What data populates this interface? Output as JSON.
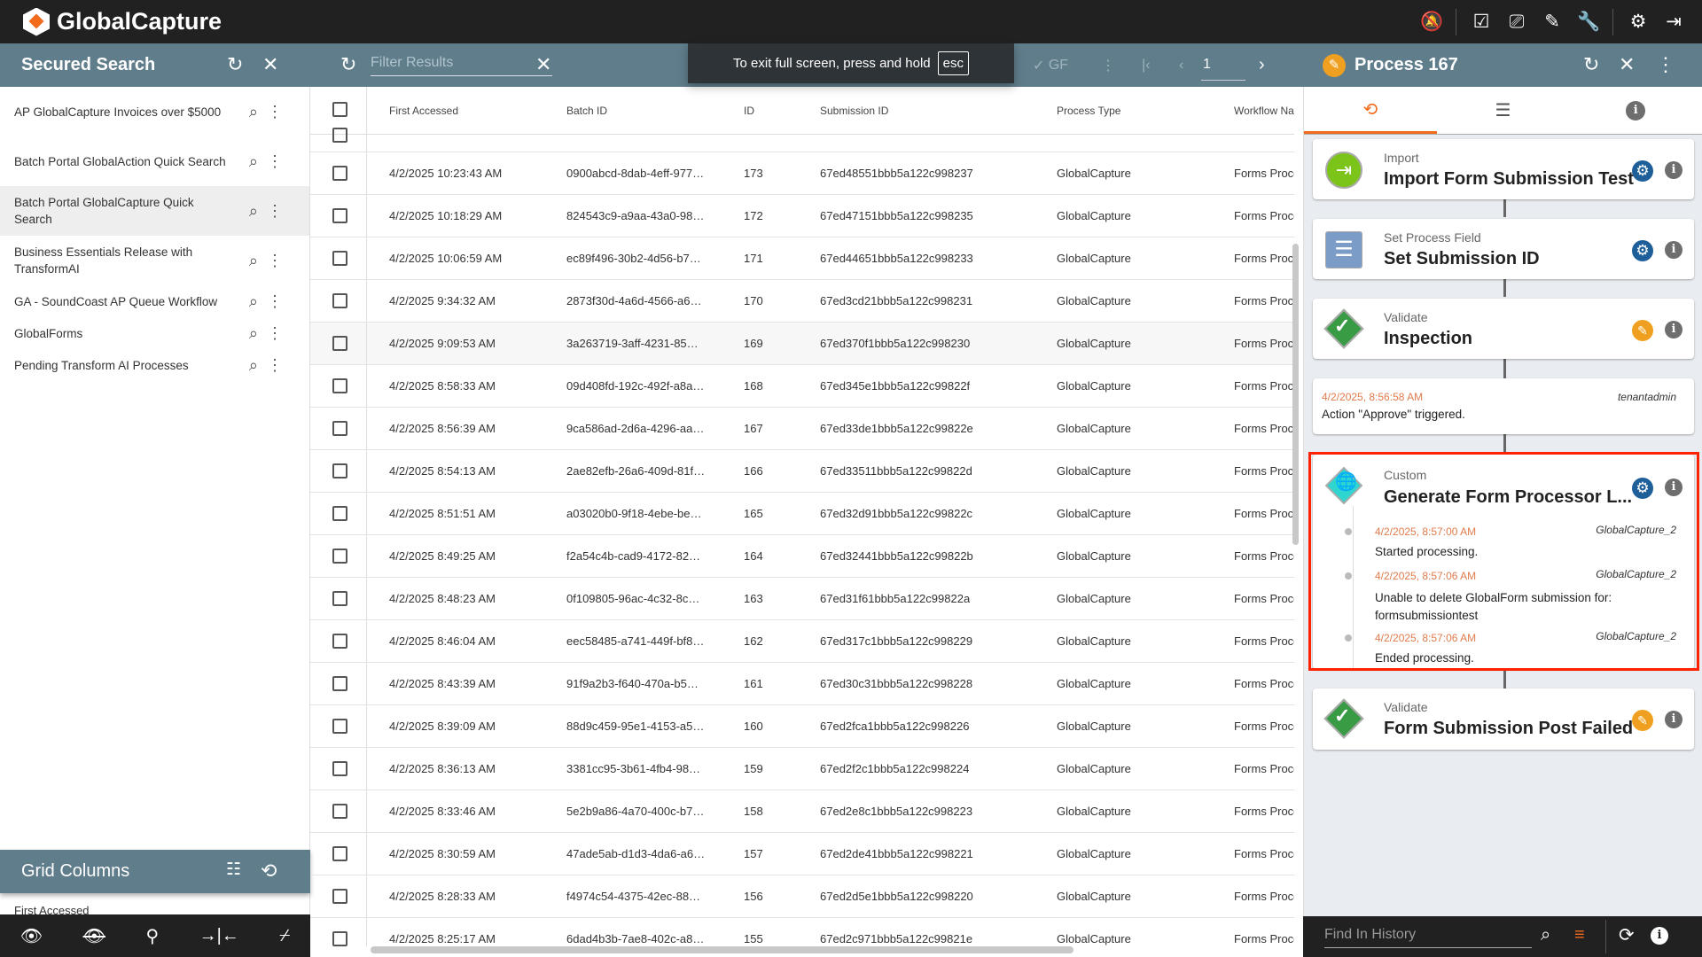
{
  "app": {
    "title": "GlobalCapture",
    "top_icons": [
      "notifications-off-icon",
      "tasks-icon",
      "inbox-icon",
      "brush-icon",
      "wrench-icon",
      "settings-icon",
      "logout-icon"
    ]
  },
  "left": {
    "title": "Secured Search",
    "items": [
      {
        "label": "AP GlobalCapture Invoices over $5000"
      },
      {
        "label": "Batch Portal GlobalAction Quick Search"
      },
      {
        "label": "Batch Portal GlobalCapture Quick Search",
        "selected": true
      },
      {
        "label": "Business Essentials Release with TransformAI"
      },
      {
        "label": "GA - SoundCoast AP Queue Workflow"
      },
      {
        "label": "GlobalForms"
      },
      {
        "label": "Pending Transform AI Processes"
      }
    ],
    "grid_columns": {
      "title": "Grid Columns",
      "peek_item": "First Accessed"
    },
    "bottom_icons": [
      "eye-icon",
      "eye-off-icon",
      "pin-off-icon",
      "collapse-columns-icon",
      "filter-off-icon"
    ]
  },
  "table": {
    "filter_placeholder": "Filter Results",
    "toolbar": {
      "gf_label": "GF",
      "page": "1"
    },
    "toast": {
      "text": "To exit full screen, press and hold",
      "key": "esc"
    },
    "columns": [
      "First Accessed",
      "Batch ID",
      "ID",
      "Submission ID",
      "Process Type",
      "Workflow Name"
    ],
    "rows": [
      [
        "4/2/2025 10:23:43 AM",
        "0900abcd-8dab-4eff-977…",
        "173",
        "67ed48551bbb5a122c998237",
        "GlobalCapture",
        "Forms Processing"
      ],
      [
        "4/2/2025 10:18:29 AM",
        "824543c9-a9aa-43a0-98…",
        "172",
        "67ed47151bbb5a122c998235",
        "GlobalCapture",
        "Forms Processing"
      ],
      [
        "4/2/2025 10:06:59 AM",
        "ec89f496-30b2-4d56-b7…",
        "171",
        "67ed44651bbb5a122c998233",
        "GlobalCapture",
        "Forms Processing"
      ],
      [
        "4/2/2025 9:34:32 AM",
        "2873f30d-4a6d-4566-a6…",
        "170",
        "67ed3cd21bbb5a122c998231",
        "GlobalCapture",
        "Forms Processing"
      ],
      [
        "4/2/2025 9:09:53 AM",
        "3a263719-3aff-4231-85…",
        "169",
        "67ed370f1bbb5a122c998230",
        "GlobalCapture",
        "Forms Processing"
      ],
      [
        "4/2/2025 8:58:33 AM",
        "09d408fd-192c-492f-a8a…",
        "168",
        "67ed345e1bbb5a122c99822f",
        "GlobalCapture",
        "Forms Processing"
      ],
      [
        "4/2/2025 8:56:39 AM",
        "9ca586ad-2d6a-4296-aa…",
        "167",
        "67ed33de1bbb5a122c99822e",
        "GlobalCapture",
        "Forms Processing"
      ],
      [
        "4/2/2025 8:54:13 AM",
        "2ae82efb-26a6-409d-81f…",
        "166",
        "67ed33511bbb5a122c99822d",
        "GlobalCapture",
        "Forms Processing"
      ],
      [
        "4/2/2025 8:51:51 AM",
        "a03020b0-9f18-4ebe-be…",
        "165",
        "67ed32d91bbb5a122c99822c",
        "GlobalCapture",
        "Forms Processing"
      ],
      [
        "4/2/2025 8:49:25 AM",
        "f2a54c4b-cad9-4172-82…",
        "164",
        "67ed32441bbb5a122c99822b",
        "GlobalCapture",
        "Forms Processing"
      ],
      [
        "4/2/2025 8:48:23 AM",
        "0f109805-96ac-4c32-8c…",
        "163",
        "67ed31f61bbb5a122c99822a",
        "GlobalCapture",
        "Forms Processing"
      ],
      [
        "4/2/2025 8:46:04 AM",
        "eec58485-a741-449f-bf8…",
        "162",
        "67ed317c1bbb5a122c998229",
        "GlobalCapture",
        "Forms Processing"
      ],
      [
        "4/2/2025 8:43:39 AM",
        "91f9a2b3-f640-470a-b5…",
        "161",
        "67ed30c31bbb5a122c998228",
        "GlobalCapture",
        "Forms Processing"
      ],
      [
        "4/2/2025 8:39:09 AM",
        "88d9c459-95e1-4153-a5…",
        "160",
        "67ed2fca1bbb5a122c998226",
        "GlobalCapture",
        "Forms Processing"
      ],
      [
        "4/2/2025 8:36:13 AM",
        "3381cc95-3b61-4fb4-98…",
        "159",
        "67ed2f2c1bbb5a122c998224",
        "GlobalCapture",
        "Forms Processing"
      ],
      [
        "4/2/2025 8:33:46 AM",
        "5e2b9a86-4a70-400c-b7…",
        "158",
        "67ed2e8c1bbb5a122c998223",
        "GlobalCapture",
        "Forms Processing"
      ],
      [
        "4/2/2025 8:30:59 AM",
        "47ade5ab-d1d3-4da6-a6…",
        "157",
        "67ed2de41bbb5a122c998221",
        "GlobalCapture",
        "Forms Processing"
      ],
      [
        "4/2/2025 8:28:33 AM",
        "f4974c54-4375-42ec-88…",
        "156",
        "67ed2d5e1bbb5a122c998220",
        "GlobalCapture",
        "Forms Processing"
      ],
      [
        "4/2/2025 8:25:17 AM",
        "6dad4b3b-7ae8-402c-a8…",
        "155",
        "67ed2c971bbb5a122c99821e",
        "GlobalCapture",
        "Forms Processing"
      ]
    ],
    "highlighted_row_id": "169"
  },
  "process": {
    "title": "Process 167",
    "tabs": [
      "history-icon",
      "list-icon",
      "info-icon"
    ],
    "steps": [
      {
        "type": "Import",
        "title": "Import Form Submission Test",
        "icon": "import-icon",
        "action": "settings"
      },
      {
        "type": "Set Process Field",
        "title": "Set Submission ID",
        "icon": "list-icon",
        "action": "settings"
      },
      {
        "type": "Validate",
        "title": "Inspection",
        "icon": "check-diamond-icon",
        "action": "edit"
      }
    ],
    "log": {
      "timestamp": "4/2/2025, 8:56:58 AM",
      "user": "tenantadmin",
      "message": "Action \"Approve\" triggered."
    },
    "custom_step": {
      "type": "Custom",
      "title": "Generate Form Processor L...",
      "events": [
        {
          "timestamp": "4/2/2025, 8:57:00 AM",
          "user": "GlobalCapture_2",
          "message": "Started processing."
        },
        {
          "timestamp": "4/2/2025, 8:57:06 AM",
          "user": "GlobalCapture_2",
          "message": "Unable to delete GlobalForm submission for: formsubmissiontest"
        },
        {
          "timestamp": "4/2/2025, 8:57:06 AM",
          "user": "GlobalCapture_2",
          "message": "Ended processing."
        }
      ]
    },
    "final_step": {
      "type": "Validate",
      "title": "Form Submission Post Failed"
    },
    "find_placeholder": "Find In History"
  },
  "colors": {
    "accent": "#f26b1d",
    "header": "#607d8b",
    "highlight_box": "#ff2200",
    "timestamp": "#e07b4c"
  }
}
